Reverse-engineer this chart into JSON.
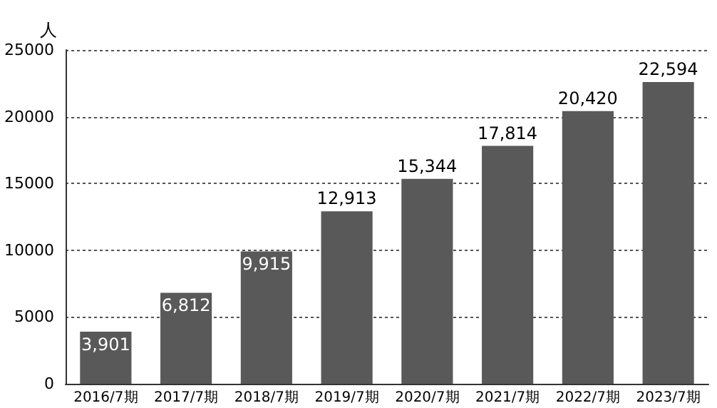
{
  "chart_data": {
    "type": "bar",
    "ylabel": "人",
    "categories": [
      "2016/7期",
      "2017/7期",
      "2018/7期",
      "2019/7期",
      "2020/7期",
      "2021/7期",
      "2022/7期",
      "2023/7期"
    ],
    "values": [
      3901,
      6812,
      9915,
      12913,
      15344,
      17814,
      20420,
      22594
    ],
    "value_labels": [
      "3,901",
      "6,812",
      "9,915",
      "12,913",
      "15,344",
      "17,814",
      "20,420",
      "22,594"
    ],
    "color": "#595959",
    "ylim": [
      0,
      25000
    ],
    "yticks": [
      0,
      5000,
      10000,
      15000,
      20000,
      25000
    ],
    "grid": "y"
  }
}
